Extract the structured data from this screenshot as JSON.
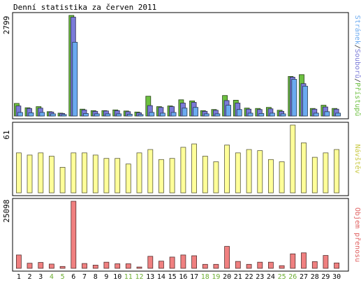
{
  "chart_data": {
    "type": "bar",
    "title": "Denní statistika za červen 2011",
    "categories": [
      "1",
      "2",
      "3",
      "4",
      "5",
      "6",
      "7",
      "8",
      "9",
      "10",
      "11",
      "12",
      "13",
      "14",
      "15",
      "16",
      "17",
      "18",
      "19",
      "20",
      "21",
      "22",
      "23",
      "24",
      "25",
      "26",
      "27",
      "28",
      "29",
      "30"
    ],
    "weekend_days": [
      "4",
      "5",
      "11",
      "12",
      "18",
      "19",
      "25",
      "26"
    ],
    "panels": [
      {
        "name": "traffic",
        "ymax_label": "2799",
        "ymax": 2799,
        "legend_parts": [
          {
            "text": "Stránek",
            "color": "#6baaf0"
          },
          {
            "text": "/",
            "color": "#333333"
          },
          {
            "text": "Souborů",
            "color": "#7a7ad8"
          },
          {
            "text": "/",
            "color": "#333333"
          },
          {
            "text": "Přístupů",
            "color": "#6dc040"
          }
        ],
        "series": [
          {
            "name": "Přístupů",
            "color": "#6dc040",
            "values": [
              350,
              230,
              260,
              120,
              80,
              2799,
              190,
              150,
              150,
              170,
              140,
              110,
              550,
              260,
              280,
              450,
              420,
              150,
              180,
              570,
              440,
              220,
              210,
              240,
              160,
              1100,
              1150,
              210,
              300,
              210
            ]
          },
          {
            "name": "Souborů",
            "color": "#7a7ad8",
            "values": [
              280,
              210,
              220,
              110,
              70,
              2750,
              170,
              130,
              140,
              150,
              120,
              90,
              290,
              240,
              260,
              360,
              380,
              130,
              160,
              430,
              360,
              190,
              180,
              200,
              130,
              1080,
              900,
              190,
              250,
              190
            ]
          },
          {
            "name": "Stránek",
            "color": "#6baaf0",
            "values": [
              100,
              90,
              100,
              60,
              40,
              2050,
              70,
              60,
              60,
              60,
              50,
              40,
              100,
              80,
              100,
              220,
              240,
              60,
              60,
              300,
              180,
              80,
              70,
              80,
              60,
              1020,
              830,
              80,
              120,
              80
            ]
          }
        ]
      },
      {
        "name": "visits",
        "ymax_label": "61",
        "ymax": 61,
        "legend_parts": [
          {
            "text": "Návštěv",
            "color": "#c8c840"
          }
        ],
        "series": [
          {
            "name": "Návštěv",
            "color": "#ffff99",
            "values": [
              36,
              34,
              36,
              33,
              23,
              36,
              36,
              34,
              31,
              31,
              26,
              36,
              39,
              30,
              31,
              41,
              44,
              33,
              28,
              43,
              36,
              39,
              38,
              30,
              28,
              61,
              45,
              32,
              36,
              39
            ]
          }
        ]
      },
      {
        "name": "bytes",
        "ymax_label": "25098",
        "ymax": 25098,
        "legend_parts": [
          {
            "text": "Objem přenosu",
            "color": "#e06060"
          }
        ],
        "series": [
          {
            "name": "Objem přenosu",
            "color": "#f08080",
            "values": [
              5000,
              1900,
              2200,
              1600,
              700,
              25098,
              1800,
              1200,
              2300,
              1700,
              1700,
              500,
              4500,
              2700,
              4200,
              5000,
              4700,
              1500,
              1500,
              8200,
              2600,
              1500,
              2300,
              2300,
              1000,
              5400,
              5800,
              2500,
              4800,
              2000
            ]
          }
        ]
      }
    ]
  }
}
